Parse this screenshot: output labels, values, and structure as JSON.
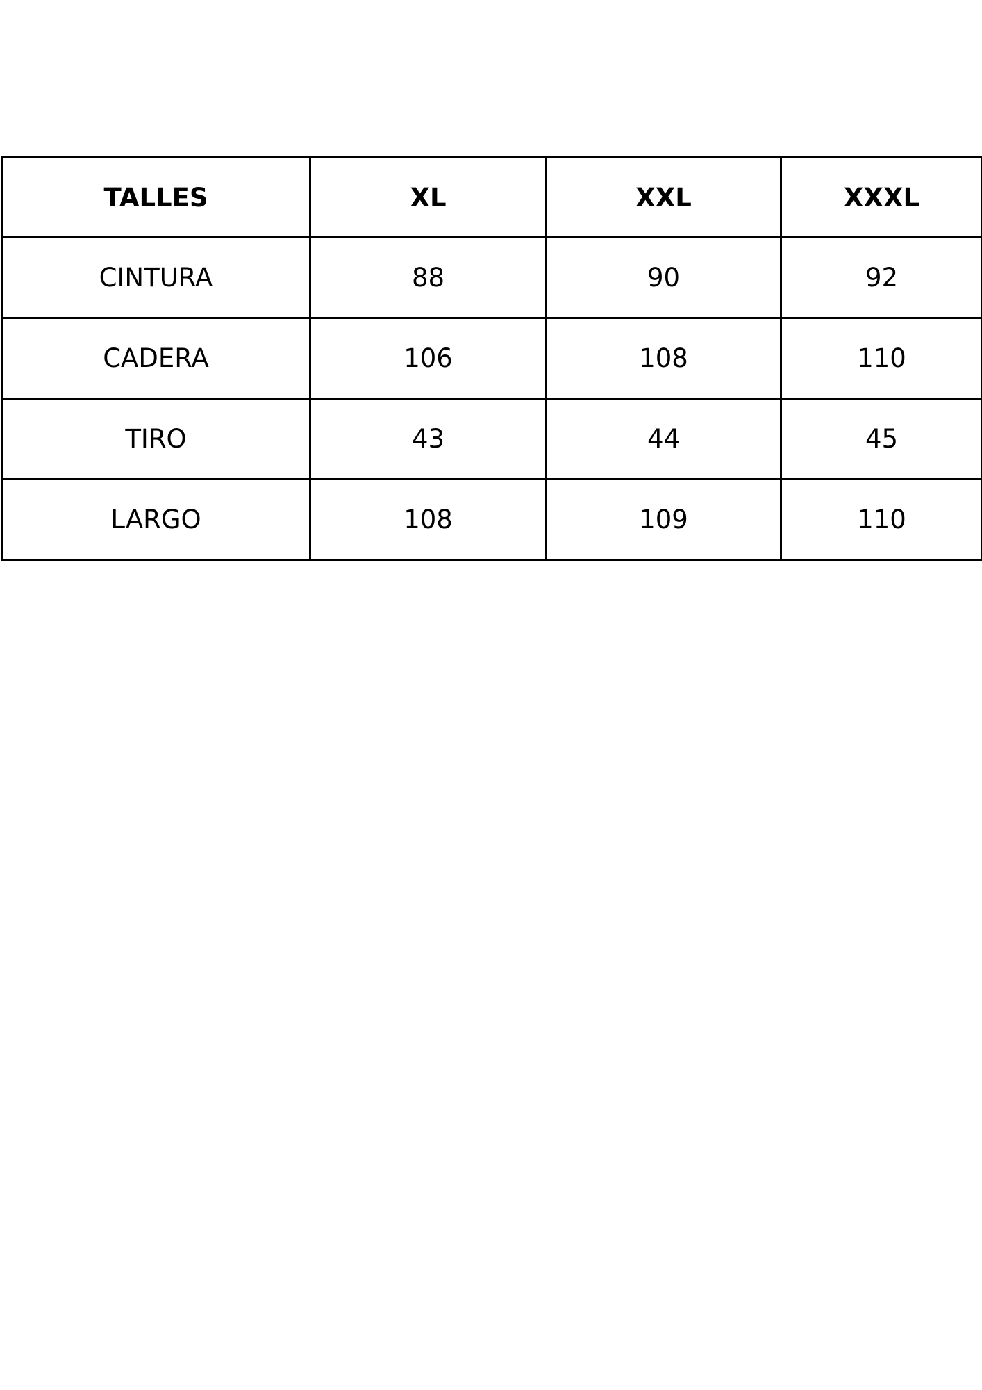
{
  "size_table": {
    "headers": [
      "TALLES",
      "XL",
      "XXL",
      "XXXL"
    ],
    "rows": [
      [
        "CINTURA",
        "88",
        "90",
        "92"
      ],
      [
        "CADERA",
        "106",
        "108",
        "110"
      ],
      [
        "TIRO",
        "43",
        "44",
        "45"
      ],
      [
        "LARGO",
        "108",
        "109",
        "110"
      ]
    ]
  }
}
